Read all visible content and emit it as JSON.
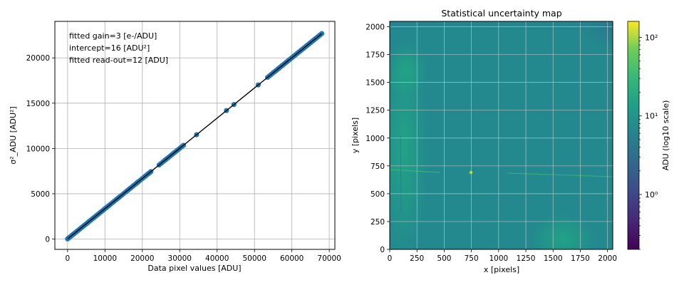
{
  "chart_data": [
    {
      "type": "scatter",
      "title": "",
      "xlabel": "Data pixel values [ADU]",
      "ylabel": "σ²_ADU [ADU²]",
      "xlim": [
        -3400,
        71500
      ],
      "ylim": [
        -1140,
        24030
      ],
      "x_ticks": [
        "0",
        "10000",
        "20000",
        "30000",
        "40000",
        "50000",
        "60000",
        "70000"
      ],
      "x_tick_values": [
        0,
        10000,
        20000,
        30000,
        40000,
        50000,
        60000,
        70000
      ],
      "y_ticks": [
        "0",
        "5000",
        "10000",
        "15000",
        "20000"
      ],
      "y_tick_values": [
        0,
        5000,
        10000,
        15000,
        20000
      ],
      "grid": true,
      "annotations": [
        "fitted gain=3 [e-/ADU]",
        "intercept=16 [ADU²]",
        "fitted read-out=12 [ADU]"
      ],
      "fit_line": {
        "slope": 0.3333,
        "intercept": 16,
        "x": [
          0,
          68000
        ],
        "color": "#000000"
      },
      "series": [
        {
          "color": "#1f77b4",
          "points": [
            [
              0,
              16
            ],
            [
              600,
              216
            ],
            [
              1500,
              516
            ],
            [
              2500,
              849
            ],
            [
              3500,
              1182
            ],
            [
              4500,
              1516
            ],
            [
              5500,
              1849
            ],
            [
              6500,
              2182
            ],
            [
              7500,
              2516
            ],
            [
              8500,
              2849
            ],
            [
              9500,
              3182
            ],
            [
              10500,
              3516
            ],
            [
              11500,
              3849
            ],
            [
              13000,
              4349
            ],
            [
              14000,
              4682
            ],
            [
              15500,
              5182
            ],
            [
              16500,
              5516
            ],
            [
              17500,
              5849
            ],
            [
              18500,
              6182
            ],
            [
              19000,
              6349
            ],
            [
              20500,
              6849
            ],
            [
              21500,
              7182
            ],
            [
              22300,
              7449
            ],
            [
              24500,
              8182
            ],
            [
              26000,
              8682
            ],
            [
              27000,
              9016
            ],
            [
              28300,
              9449
            ],
            [
              29500,
              9849
            ],
            [
              31000,
              10349
            ],
            [
              34500,
              11516
            ],
            [
              42500,
              14182
            ],
            [
              44500,
              14849
            ],
            [
              51000,
              17016
            ],
            [
              53500,
              17849
            ],
            [
              55000,
              18349
            ],
            [
              56000,
              18682
            ],
            [
              57000,
              19016
            ],
            [
              58000,
              19349
            ],
            [
              59000,
              19682
            ],
            [
              60000,
              20016
            ],
            [
              61000,
              20349
            ],
            [
              62000,
              20682
            ],
            [
              63000,
              21016
            ],
            [
              64000,
              21349
            ],
            [
              65000,
              21682
            ],
            [
              66000,
              22016
            ],
            [
              67000,
              22349
            ],
            [
              68000,
              22682
            ]
          ]
        }
      ]
    },
    {
      "type": "heatmap",
      "title": "Statistical uncertainty map",
      "xlabel": "x [pixels]",
      "ylabel": "y [pixels]",
      "xlim": [
        0,
        2048
      ],
      "ylim": [
        0,
        2048
      ],
      "x_ticks": [
        "0",
        "250",
        "500",
        "750",
        "1000",
        "1250",
        "1500",
        "1750",
        "2000"
      ],
      "x_tick_values": [
        0,
        250,
        500,
        750,
        1000,
        1250,
        1500,
        1750,
        2000
      ],
      "y_ticks": [
        "0",
        "250",
        "500",
        "750",
        "1000",
        "1250",
        "1500",
        "1750",
        "2000"
      ],
      "y_tick_values": [
        0,
        250,
        500,
        750,
        1000,
        1250,
        1500,
        1750,
        2000
      ],
      "grid": true,
      "colormap": "viridis",
      "colorbar": {
        "label": "ADU (log10 scale)",
        "scale": "log",
        "range": [
          0.2,
          160
        ],
        "ticks": [
          "10⁰",
          "10¹",
          "10²"
        ],
        "tick_values": [
          1,
          10,
          100
        ]
      },
      "colors": {
        "background": "#23898e",
        "bright_region": "#22a784",
        "dark_corner": "#2c718e"
      }
    }
  ]
}
